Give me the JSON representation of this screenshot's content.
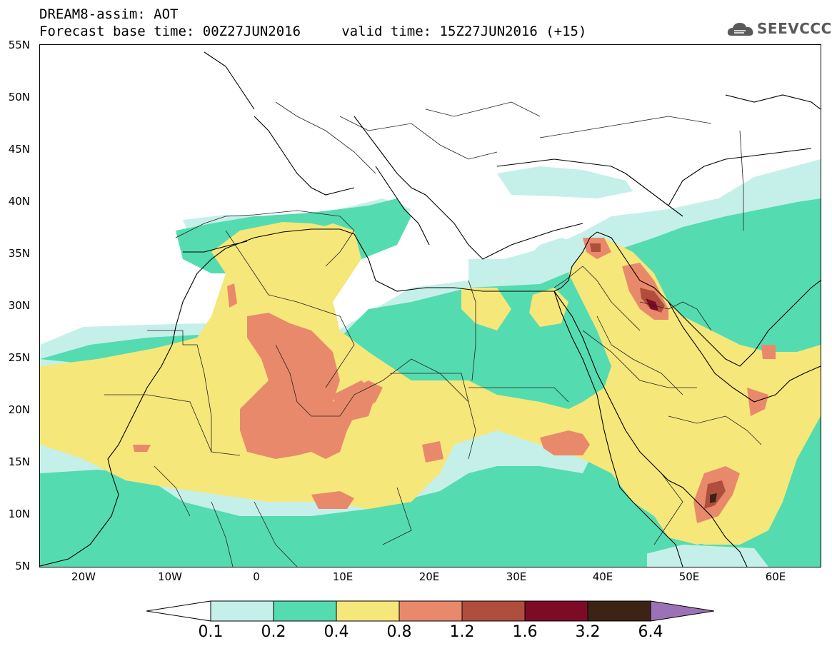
{
  "header": {
    "title_line1": "DREAM8-assim: AOT",
    "title_line2": "Forecast base time: 00Z27JUN2016     valid time: 15Z27JUN2016 (+15)"
  },
  "logo": {
    "text": "SEEVCCC",
    "icon": "cloud-logo-icon"
  },
  "map": {
    "projection": "lat-lon",
    "lat_range": [
      5,
      55
    ],
    "lon_range": [
      -25,
      65
    ],
    "lat_labels": [
      "55N",
      "50N",
      "45N",
      "40N",
      "35N",
      "30N",
      "25N",
      "20N",
      "15N",
      "10N",
      "5N"
    ],
    "lon_labels": [
      "20W",
      "10W",
      "0",
      "10E",
      "20E",
      "30E",
      "40E",
      "50E",
      "60E"
    ]
  },
  "colorbar": {
    "labels": [
      "0.1",
      "0.2",
      "0.4",
      "0.8",
      "1.2",
      "1.6",
      "3.2",
      "6.4"
    ],
    "colors": [
      "#ffffff",
      "#c5f0ea",
      "#55dbb0",
      "#f5e77a",
      "#e9896b",
      "#b04e3e",
      "#7d0b25",
      "#3b2416",
      "#9c72b6"
    ]
  },
  "colors": {
    "aot_0_1": "#ffffff",
    "aot_0_2": "#c5f0ea",
    "aot_0_4": "#55dbb0",
    "aot_0_8": "#f5e77a",
    "aot_1_2": "#e9896b",
    "aot_1_6": "#b04e3e",
    "aot_3_2": "#7d0b25",
    "aot_6_4": "#3b2416",
    "aot_over": "#9c72b6"
  }
}
